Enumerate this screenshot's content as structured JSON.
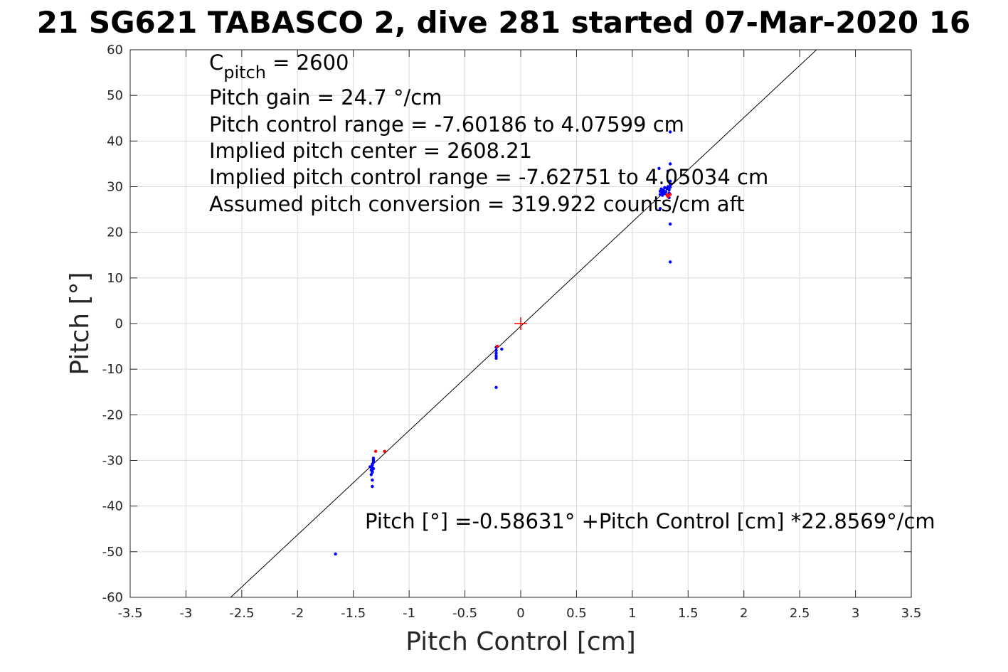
{
  "chart_data": {
    "type": "scatter",
    "title": "21 SG621 TABASCO 2, dive 281 started 07-Mar-2020 16",
    "xlabel": "Pitch Control [cm]",
    "ylabel": "Pitch [°]",
    "xlim": [
      -3.5,
      3.5
    ],
    "ylim": [
      -60,
      60
    ],
    "xticks": [
      -3.5,
      -3,
      -2.5,
      -2,
      -1.5,
      -1,
      -0.5,
      0,
      0.5,
      1,
      1.5,
      2,
      2.5,
      3,
      3.5
    ],
    "xtick_labels": [
      "-3.5",
      "-3",
      "-2.5",
      "-2",
      "-1.5",
      "-1",
      "-0.5",
      "0",
      "0.5",
      "1",
      "1.5",
      "2",
      "2.5",
      "3",
      "3.5"
    ],
    "yticks": [
      60,
      50,
      40,
      30,
      20,
      10,
      0,
      -10,
      -20,
      -30,
      -40,
      -50,
      -60
    ],
    "ytick_labels": [
      "60",
      "50",
      "40",
      "30",
      "20",
      "10",
      "0",
      "-10",
      "-20",
      "-30",
      "-40",
      "-50",
      "-60"
    ],
    "grid": true,
    "series": [
      {
        "color": "#0000ff",
        "points": [
          [
            -1.32,
            -29.5
          ],
          [
            -1.32,
            -30.3
          ],
          [
            -1.33,
            -31.0
          ],
          [
            -1.33,
            -31.6
          ],
          [
            -1.34,
            -32.1
          ],
          [
            -1.33,
            -32.6
          ],
          [
            -1.34,
            -33.1
          ],
          [
            -1.33,
            -30.8
          ],
          [
            -1.32,
            -29.9
          ],
          [
            -1.33,
            -34.3
          ],
          [
            -1.33,
            -35.7
          ],
          [
            -1.35,
            -31.4
          ],
          [
            -1.32,
            -31.8
          ],
          [
            -1.33,
            -32.4
          ],
          [
            -1.66,
            -50.5
          ],
          [
            -0.22,
            -5.2
          ],
          [
            -0.22,
            -5.9
          ],
          [
            -0.22,
            -6.5
          ],
          [
            -0.22,
            -7.1
          ],
          [
            -0.22,
            -7.6
          ],
          [
            -0.17,
            -5.6
          ],
          [
            -0.22,
            -14.0
          ],
          [
            1.25,
            28.3
          ],
          [
            1.25,
            29.0
          ],
          [
            1.26,
            29.5
          ],
          [
            1.27,
            28.7
          ],
          [
            1.28,
            29.2
          ],
          [
            1.29,
            29.8
          ],
          [
            1.3,
            28.9
          ],
          [
            1.31,
            29.6
          ],
          [
            1.32,
            30.0
          ],
          [
            1.33,
            29.3
          ],
          [
            1.33,
            28.6
          ],
          [
            1.34,
            30.5
          ],
          [
            1.34,
            31.2
          ],
          [
            1.34,
            29.9
          ],
          [
            1.33,
            27.6
          ],
          [
            1.27,
            28.1
          ],
          [
            1.29,
            28.5
          ],
          [
            1.31,
            28.2
          ],
          [
            1.24,
            34.0
          ],
          [
            1.32,
            33.4
          ],
          [
            1.34,
            35.0
          ],
          [
            1.34,
            42.0
          ],
          [
            1.34,
            21.8
          ],
          [
            1.34,
            13.5
          ],
          [
            1.25,
            25.2
          ],
          [
            1.26,
            29.4
          ],
          [
            1.28,
            28.8
          ]
        ]
      },
      {
        "color": "#ff0000",
        "points": [
          [
            -1.3,
            -28.0
          ],
          [
            -1.22,
            -28.0
          ],
          [
            -0.21,
            -5.0
          ],
          [
            1.31,
            28.2
          ],
          [
            1.32,
            27.8
          ],
          [
            1.34,
            28.3
          ]
        ]
      }
    ],
    "fit_line": {
      "intercept": -0.58631,
      "slope": 22.8569,
      "color": "#000000"
    },
    "center_marker": {
      "x": 0,
      "y": 0,
      "symbol": "+",
      "color": "#ff0000"
    },
    "annotations": {
      "c_pitch_symbol": "C",
      "c_pitch_subscript": "pitch",
      "c_pitch_rest": " = 2600",
      "lines": [
        "Pitch gain = 24.7 °/cm",
        "Pitch control range = -7.60186 to 4.07599 cm",
        "Implied pitch center = 2608.21",
        "Implied pitch control range = -7.62751 to 4.05034 cm",
        "Assumed pitch conversion = 319.922 counts/cm aft"
      ],
      "fit_equation": "Pitch [°] =-0.58631° +Pitch Control [cm] *22.8569°/cm"
    }
  }
}
